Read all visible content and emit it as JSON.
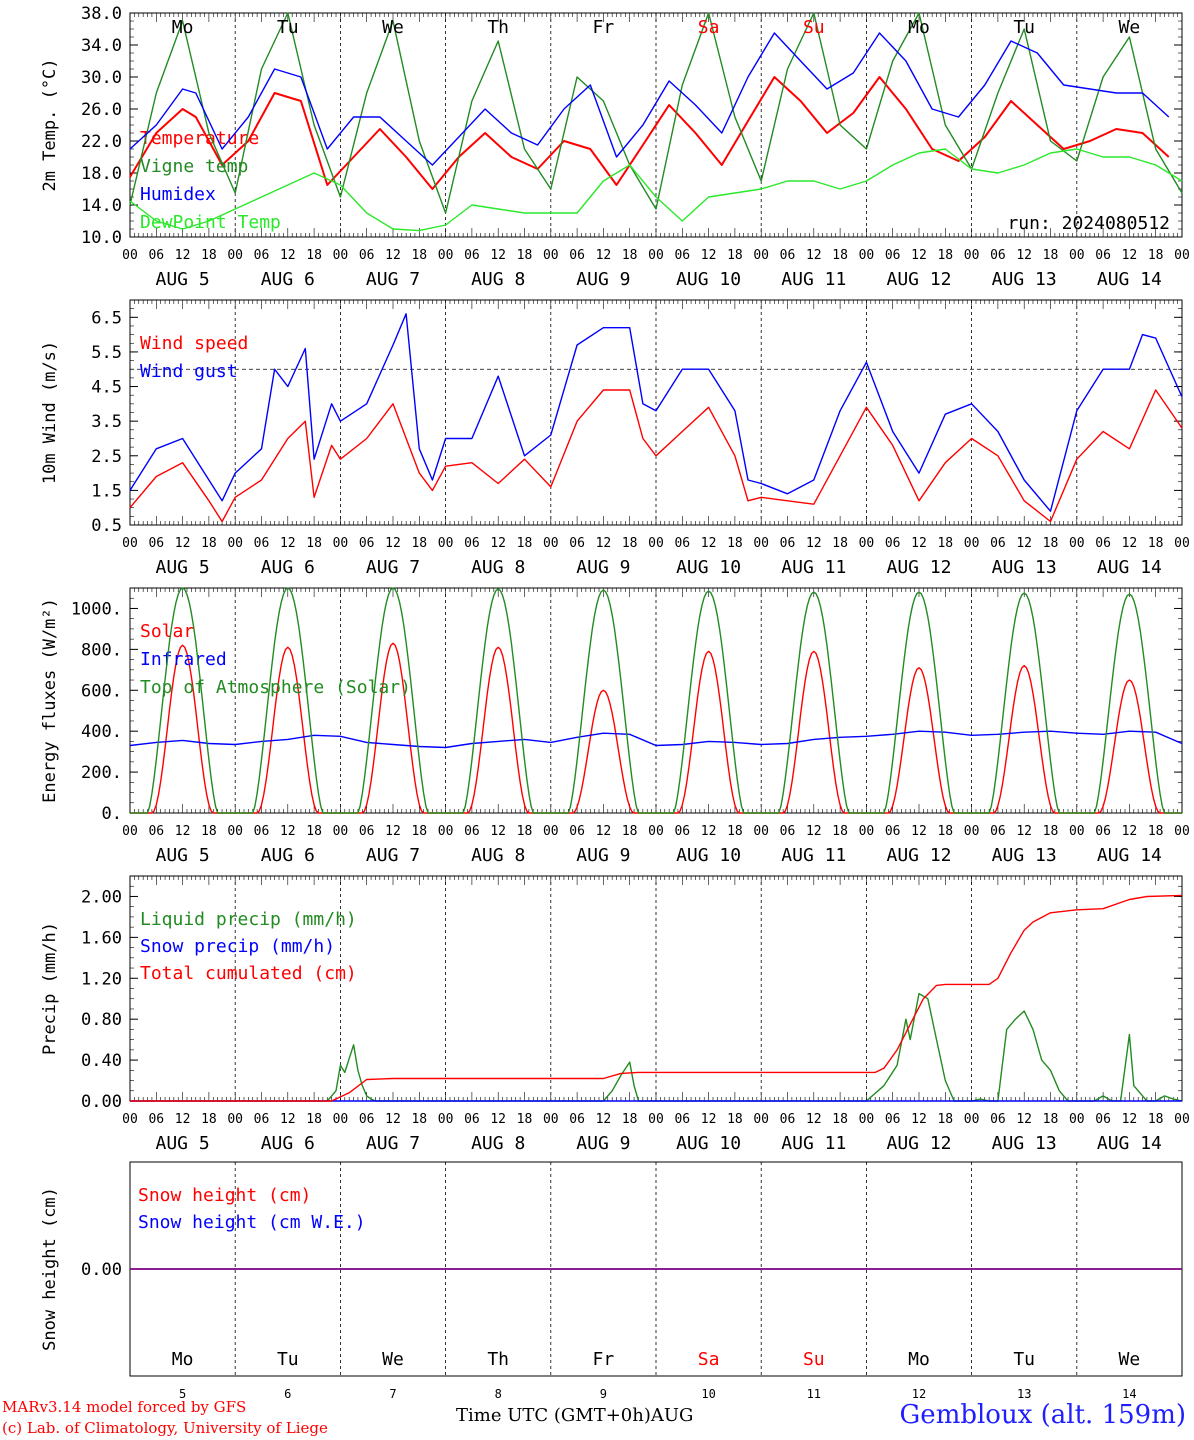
{
  "chart_data": [
    {
      "type": "line",
      "ylabel": "2m Temp. (°C)",
      "ylim": [
        10,
        38
      ],
      "yticks": [
        "38.0",
        "34.0",
        "30.0",
        "26.0",
        "22.0",
        "18.0",
        "14.0",
        "10.0"
      ],
      "annotation": "run: 2024080512",
      "series": [
        {
          "name": "Temperature",
          "color": "#ff0000",
          "x_hours": [
            0,
            6,
            12,
            15,
            21,
            27,
            33,
            39,
            45,
            51,
            57,
            63,
            69,
            75,
            81,
            87,
            93,
            99,
            105,
            111,
            117,
            123,
            129,
            135,
            141,
            147,
            153,
            159,
            165,
            171,
            177,
            183,
            189,
            195,
            201,
            207,
            213,
            219,
            225,
            231,
            237
          ],
          "values": [
            17.5,
            23,
            26,
            25,
            19,
            22,
            28,
            27,
            16.5,
            20,
            23.5,
            20,
            16,
            20,
            23,
            20,
            18.5,
            22,
            21,
            16.5,
            21.5,
            26.5,
            23,
            19,
            24.5,
            30,
            27,
            23,
            25.5,
            30,
            26,
            21,
            19.5,
            22.5,
            27,
            24,
            21,
            22,
            23.5,
            23,
            20
          ]
        },
        {
          "name": "Vigne temp",
          "color": "#228b22",
          "x_hours": [
            0,
            6,
            12,
            18,
            24,
            30,
            36,
            42,
            48,
            54,
            60,
            66,
            72,
            78,
            84,
            90,
            96,
            102,
            108,
            114,
            120,
            126,
            132,
            138,
            144,
            150,
            156,
            162,
            168,
            174,
            180,
            186,
            192,
            198,
            204,
            210,
            216,
            222,
            228,
            234,
            240
          ],
          "values": [
            14,
            28,
            37,
            23,
            15.5,
            31,
            38,
            24,
            15,
            28,
            37,
            22,
            13,
            27,
            34.5,
            21,
            16,
            30,
            27,
            19,
            13.5,
            29,
            38,
            25,
            17,
            31,
            38,
            24,
            21,
            32,
            38,
            24,
            18.5,
            28,
            36,
            22,
            19.5,
            30,
            35,
            21,
            15.5
          ]
        },
        {
          "name": "Humidex",
          "color": "#0000ff",
          "x_hours": [
            0,
            6,
            12,
            15,
            21,
            27,
            33,
            39,
            45,
            51,
            57,
            63,
            69,
            75,
            81,
            87,
            93,
            99,
            105,
            111,
            117,
            123,
            129,
            135,
            141,
            147,
            153,
            159,
            165,
            171,
            177,
            183,
            189,
            195,
            201,
            207,
            213,
            219,
            225,
            231,
            237
          ],
          "values": [
            21,
            24,
            28.5,
            28,
            21,
            25,
            31,
            30,
            21,
            25,
            25,
            22,
            19,
            22.5,
            26,
            23,
            21.5,
            26,
            29,
            20,
            24,
            29.5,
            26.5,
            23,
            30,
            35.5,
            32,
            28.5,
            30.5,
            35.5,
            32,
            26,
            25,
            29,
            34.5,
            33,
            29,
            28.5,
            28,
            28,
            25
          ]
        },
        {
          "name": "DewPoint Temp",
          "color": "#2ae82a",
          "x_hours": [
            0,
            6,
            12,
            18,
            24,
            30,
            36,
            42,
            48,
            54,
            60,
            66,
            72,
            78,
            84,
            90,
            96,
            102,
            108,
            114,
            120,
            126,
            132,
            138,
            144,
            150,
            156,
            162,
            168,
            174,
            180,
            186,
            192,
            198,
            204,
            210,
            216,
            222,
            228,
            234,
            240
          ],
          "values": [
            14.5,
            12,
            11,
            12,
            13.5,
            15,
            16.5,
            18,
            16.5,
            13,
            11,
            10.8,
            11.5,
            14,
            13.5,
            13,
            13,
            13,
            17,
            19,
            15,
            12,
            15,
            15.5,
            16,
            17,
            17,
            16,
            17,
            19,
            20.5,
            21,
            18.5,
            18,
            19,
            20.5,
            21,
            20,
            20,
            19,
            17
          ]
        }
      ]
    },
    {
      "type": "line",
      "ylabel": "10m Wind (m/s)",
      "ylim": [
        0.5,
        7.0
      ],
      "yticks": [
        "6.5",
        "5.5",
        "4.5",
        "3.5",
        "2.5",
        "1.5",
        "0.5"
      ],
      "reference_line": 5.0,
      "series": [
        {
          "name": "Wind speed",
          "color": "#ff0000",
          "x_hours": [
            0,
            6,
            12,
            18,
            21,
            24,
            30,
            36,
            40,
            42,
            46,
            48,
            54,
            60,
            66,
            69,
            72,
            78,
            84,
            90,
            96,
            102,
            108,
            114,
            117,
            120,
            126,
            132,
            138,
            141,
            144,
            150,
            156,
            162,
            168,
            174,
            180,
            186,
            192,
            198,
            204,
            210,
            216,
            222,
            228,
            234,
            240
          ],
          "values": [
            1,
            1.9,
            2.3,
            1.2,
            0.6,
            1.3,
            1.8,
            3,
            3.5,
            1.3,
            2.8,
            2.4,
            3,
            4,
            2,
            1.5,
            2.2,
            2.3,
            1.7,
            2.4,
            1.6,
            3.5,
            4.4,
            4.4,
            3,
            2.5,
            3.2,
            3.9,
            2.5,
            1.2,
            1.3,
            1.2,
            1.1,
            2.5,
            3.9,
            2.8,
            1.2,
            2.3,
            3,
            2.5,
            1.2,
            0.6,
            2.4,
            3.2,
            2.7,
            4.4,
            3.3
          ]
        },
        {
          "name": "Wind gust",
          "color": "#0000ff",
          "x_hours": [
            0,
            6,
            12,
            18,
            21,
            24,
            30,
            33,
            36,
            40,
            42,
            46,
            48,
            54,
            60,
            63,
            66,
            69,
            72,
            78,
            84,
            90,
            96,
            102,
            108,
            114,
            117,
            120,
            126,
            132,
            138,
            141,
            144,
            150,
            156,
            162,
            168,
            174,
            180,
            186,
            192,
            198,
            204,
            210,
            216,
            222,
            228,
            231,
            234,
            240
          ],
          "values": [
            1.5,
            2.7,
            3,
            1.8,
            1.2,
            2,
            2.7,
            5,
            4.5,
            5.6,
            2.4,
            4,
            3.5,
            4,
            5.7,
            6.6,
            2.7,
            1.8,
            3,
            3,
            4.8,
            2.5,
            3.1,
            5.7,
            6.2,
            6.2,
            4,
            3.8,
            5,
            5,
            3.8,
            1.8,
            1.7,
            1.4,
            1.8,
            3.8,
            5.2,
            3.2,
            2,
            3.7,
            4,
            3.2,
            1.8,
            0.9,
            3.8,
            5,
            5,
            6,
            5.9,
            4.2
          ]
        }
      ]
    },
    {
      "type": "line",
      "ylabel": "Energy fluxes (W/m²)",
      "ylim": [
        0,
        1100
      ],
      "yticks": [
        "1000.",
        "800.",
        "600.",
        "400.",
        "200.",
        "0."
      ],
      "series": [
        {
          "name": "Solar",
          "color": "#ff0000",
          "peak_hour_utc": 12,
          "daily_peaks": [
            820,
            810,
            830,
            810,
            600,
            790,
            790,
            710,
            720,
            650
          ]
        },
        {
          "name": "Infrared",
          "color": "#0000ff",
          "x_hours": [
            0,
            6,
            12,
            18,
            24,
            30,
            36,
            42,
            48,
            54,
            60,
            66,
            72,
            78,
            84,
            90,
            96,
            102,
            108,
            114,
            120,
            126,
            132,
            138,
            144,
            150,
            156,
            162,
            168,
            174,
            180,
            186,
            192,
            198,
            204,
            210,
            216,
            222,
            228,
            234,
            240
          ],
          "values": [
            330,
            345,
            355,
            340,
            335,
            350,
            360,
            380,
            375,
            345,
            335,
            325,
            320,
            340,
            350,
            360,
            345,
            370,
            390,
            385,
            330,
            335,
            350,
            345,
            335,
            340,
            360,
            370,
            375,
            385,
            400,
            395,
            380,
            385,
            395,
            400,
            390,
            385,
            400,
            395,
            340
          ]
        },
        {
          "name": "Top of Atmosphere (Solar)",
          "color": "#228b22",
          "peak_hour_utc": 12,
          "daily_peaks": [
            1100,
            1100,
            1100,
            1095,
            1090,
            1085,
            1080,
            1080,
            1075,
            1070
          ]
        }
      ]
    },
    {
      "type": "line",
      "ylabel": "Precip (mm/h)",
      "ylim": [
        0,
        2.2
      ],
      "yticks": [
        "2.00",
        "1.60",
        "1.20",
        "0.80",
        "0.40",
        "0.00"
      ],
      "series": [
        {
          "name": "Liquid precip (mm/h)",
          "color": "#228b22",
          "x_hours": [
            0,
            45,
            47,
            48,
            49,
            51,
            52,
            53,
            54,
            55,
            56,
            108,
            110,
            112,
            114,
            115,
            116,
            118,
            120,
            168,
            172,
            175,
            177,
            178,
            180,
            182,
            184,
            186,
            188,
            189,
            190,
            192,
            194,
            196,
            198,
            200,
            202,
            204,
            206,
            208,
            210,
            212,
            214,
            216,
            218,
            220,
            222,
            224,
            226,
            228,
            229,
            230,
            232,
            234,
            236,
            238,
            240
          ],
          "values": [
            0,
            0,
            0.1,
            0.35,
            0.28,
            0.55,
            0.3,
            0.15,
            0.05,
            0.02,
            0,
            0,
            0.1,
            0.25,
            0.38,
            0.15,
            0,
            0,
            0,
            0,
            0.15,
            0.35,
            0.8,
            0.6,
            1.05,
            1.0,
            0.6,
            0.2,
            0,
            0,
            0,
            0,
            0.02,
            0,
            0,
            0.7,
            0.8,
            0.88,
            0.7,
            0.4,
            0.3,
            0.1,
            0,
            0,
            0,
            0,
            0.05,
            0,
            0,
            0.65,
            0.15,
            0.1,
            0,
            0,
            0.05,
            0.02,
            0
          ]
        },
        {
          "name": "Snow precip (mm/h)",
          "color": "#0000ff",
          "x_hours": [
            0,
            240
          ],
          "values": [
            0,
            0
          ]
        },
        {
          "name": "Total cumulated (cm)",
          "color": "#ff0000",
          "x_hours": [
            0,
            46,
            50,
            54,
            60,
            108,
            112,
            116,
            170,
            172,
            175,
            178,
            181,
            184,
            186,
            196,
            198,
            201,
            204,
            206,
            210,
            214,
            216,
            222,
            228,
            232,
            240
          ],
          "values": [
            0,
            0,
            0.08,
            0.21,
            0.22,
            0.22,
            0.27,
            0.28,
            0.28,
            0.32,
            0.5,
            0.75,
            1.0,
            1.13,
            1.14,
            1.14,
            1.2,
            1.45,
            1.67,
            1.75,
            1.84,
            1.86,
            1.87,
            1.88,
            1.97,
            2.0,
            2.01
          ]
        }
      ]
    },
    {
      "type": "line",
      "ylabel": "Snow height (cm)",
      "yticks": [
        "0.00"
      ],
      "series": [
        {
          "name": "Snow height (cm)",
          "color": "#ff0000",
          "x_hours": [
            0,
            240
          ],
          "values": [
            0,
            0
          ]
        },
        {
          "name": "Snow height (cm W.E.)",
          "color": "#0000ff",
          "x_hours": [
            0,
            240
          ],
          "values": [
            0,
            0
          ]
        }
      ]
    }
  ],
  "axis": {
    "hour_labels": [
      "00",
      "06",
      "12",
      "18"
    ],
    "end_hour_label": "00",
    "date_labels": [
      "AUG  5",
      "AUG  6",
      "AUG  7",
      "AUG  8",
      "AUG  9",
      "AUG 10",
      "AUG 11",
      "AUG 12",
      "AUG 13",
      "AUG 14"
    ],
    "weekdays": [
      "Mo",
      "Tu",
      "We",
      "Th",
      "Fr",
      "Sa",
      "Su",
      "Mo",
      "Tu",
      "We"
    ],
    "weekend_color": "#ff0000",
    "weekday_color": "#000000",
    "day_numbers": [
      "5",
      "6",
      "7",
      "8",
      "9",
      "10",
      "11",
      "12",
      "13",
      "14"
    ],
    "caption": "Time UTC (GMT+0h)AUG"
  },
  "footer": {
    "credit_line1": "MARv3.14 model forced by GFS",
    "credit_line2": "(c) Lab. of Climatology, University of Liege",
    "station": "Gembloux (alt. 159m)"
  }
}
